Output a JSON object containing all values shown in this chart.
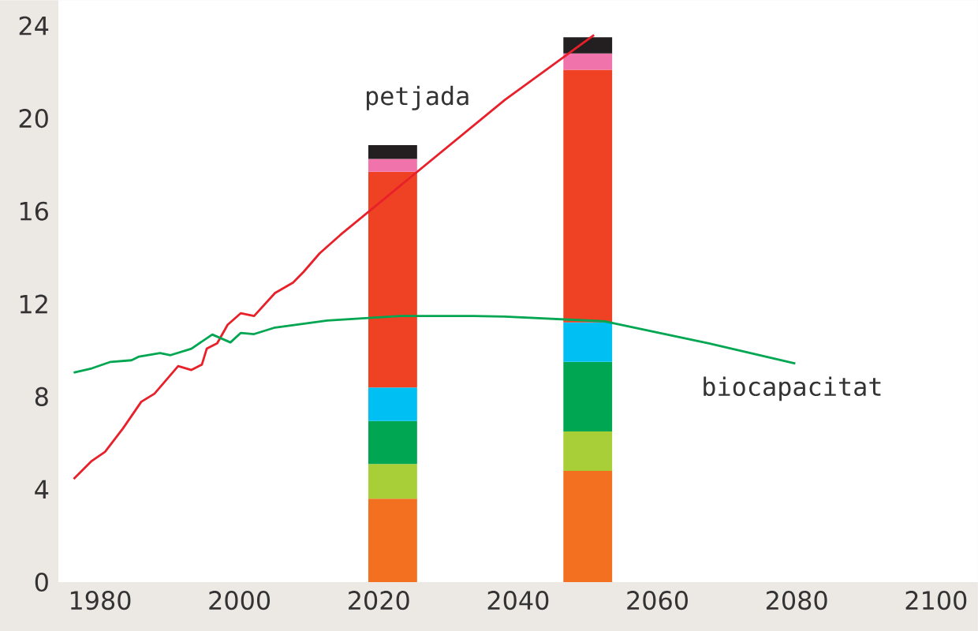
{
  "chart_data": {
    "type": "bar",
    "stacked": true,
    "x": [
      2022,
      2050
    ],
    "xlim": [
      1974,
      2106
    ],
    "ylim": [
      0,
      25.1
    ],
    "xticks": [
      1980,
      2000,
      2020,
      2040,
      2060,
      2080,
      2100
    ],
    "yticks": [
      0,
      4,
      8,
      12,
      16,
      20,
      24
    ],
    "series": [
      {
        "color": "#f37021",
        "values": [
          3.6,
          4.8
        ]
      },
      {
        "color": "#a8cf38",
        "values": [
          1.5,
          1.7
        ]
      },
      {
        "color": "#00a651",
        "values": [
          1.85,
          3.0
        ]
      },
      {
        "color": "#00bff3",
        "values": [
          1.45,
          1.7
        ]
      },
      {
        "color": "#ef4123",
        "values": [
          9.3,
          10.9
        ]
      },
      {
        "color": "#f173ac",
        "values": [
          0.55,
          0.7
        ]
      },
      {
        "color": "#231f20",
        "values": [
          0.6,
          0.7
        ]
      },
      {
        "type": "line",
        "name": "petjada",
        "color": "#e8202a",
        "x": [
          1976.2,
          1978.8,
          1980.7,
          1983.3,
          1985.9,
          1987.8,
          1991.2,
          1993.1,
          1994.6,
          1995.3,
          1996.8,
          1998.3,
          2000.2,
          2002.1,
          2005.1,
          2007.7,
          2009.2,
          2011.5,
          2014.5,
          2038.1,
          2050.9
        ],
        "values": [
          4.45,
          5.23,
          5.62,
          6.64,
          7.78,
          8.13,
          9.32,
          9.15,
          9.38,
          10.07,
          10.3,
          11.1,
          11.6,
          11.48,
          12.47,
          12.92,
          13.38,
          14.18,
          14.98,
          20.8,
          23.6
        ]
      },
      {
        "type": "line",
        "name": "biocapacitat",
        "color": "#00a651",
        "x": [
          1976.2,
          1978.8,
          1981.5,
          1984.5,
          1985.6,
          1988.6,
          1990.1,
          1993.1,
          1996.1,
          1998.7,
          2000.2,
          2002.1,
          2005.1,
          2012.6,
          2023.1,
          2033.6,
          2038.1,
          2052.4,
          2067.4,
          2079.8
        ],
        "values": [
          9.04,
          9.22,
          9.5,
          9.57,
          9.73,
          9.88,
          9.79,
          10.07,
          10.68,
          10.34,
          10.75,
          10.7,
          10.98,
          11.28,
          11.48,
          11.48,
          11.45,
          11.25,
          10.3,
          9.43
        ]
      }
    ]
  }
}
